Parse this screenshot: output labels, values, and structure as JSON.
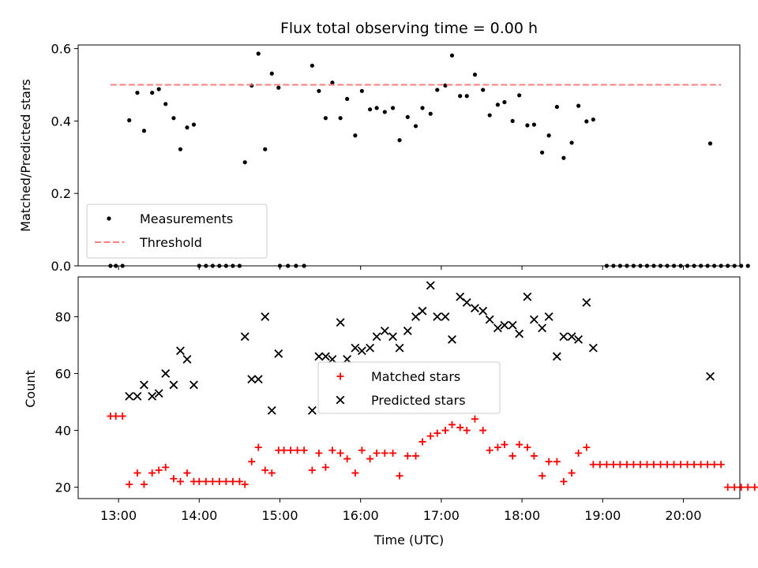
{
  "chart_data": [
    {
      "type": "scatter",
      "title": "Flux total observing time = 0.00 h",
      "xlabel": "",
      "ylabel": "Matched/Predicted stars",
      "xlim": [
        "12:30",
        "20:42"
      ],
      "ylim": [
        0,
        0.61
      ],
      "xticks": [],
      "yticks": [
        "0.0",
        "0.2",
        "0.4",
        "0.6"
      ],
      "legend_position": "lower-left",
      "series": [
        {
          "name": "Measurements",
          "kind": "scatter",
          "marker": "dot",
          "color": "#000000",
          "points": [
            [
              "12:54",
              0
            ],
            [
              "12:58",
              0
            ],
            [
              "13:03",
              0
            ],
            [
              "13:08",
              0.402
            ],
            [
              "13:14",
              0.478
            ],
            [
              "13:19",
              0.373
            ],
            [
              "13:25",
              0.478
            ],
            [
              "13:30",
              0.488
            ],
            [
              "13:35",
              0.447
            ],
            [
              "13:41",
              0.408
            ],
            [
              "13:46",
              0.322
            ],
            [
              "13:51",
              0.382
            ],
            [
              "13:56",
              0.39
            ],
            [
              "14:00",
              0
            ],
            [
              "14:05",
              0
            ],
            [
              "14:10",
              0
            ],
            [
              "14:15",
              0
            ],
            [
              "14:20",
              0
            ],
            [
              "14:25",
              0
            ],
            [
              "14:30",
              0
            ],
            [
              "14:34",
              0.286
            ],
            [
              "14:39",
              0.498
            ],
            [
              "14:44",
              0.586
            ],
            [
              "14:49",
              0.322
            ],
            [
              "14:54",
              0.531
            ],
            [
              "14:59",
              0.492
            ],
            [
              "15:00",
              0
            ],
            [
              "15:06",
              0
            ],
            [
              "15:12",
              0
            ],
            [
              "15:18",
              0
            ],
            [
              "15:24",
              0.553
            ],
            [
              "15:29",
              0.483
            ],
            [
              "15:34",
              0.408
            ],
            [
              "15:39",
              0.506
            ],
            [
              "15:45",
              0.408
            ],
            [
              "15:50",
              0.461
            ],
            [
              "15:56",
              0.36
            ],
            [
              "16:01",
              0.483
            ],
            [
              "16:07",
              0.432
            ],
            [
              "16:12",
              0.436
            ],
            [
              "16:18",
              0.425
            ],
            [
              "16:24",
              0.436
            ],
            [
              "16:29",
              0.347
            ],
            [
              "16:35",
              0.411
            ],
            [
              "16:41",
              0.386
            ],
            [
              "16:46",
              0.436
            ],
            [
              "16:52",
              0.42
            ],
            [
              "16:57",
              0.486
            ],
            [
              "17:03",
              0.498
            ],
            [
              "17:08",
              0.581
            ],
            [
              "17:14",
              0.469
            ],
            [
              "17:19",
              0.469
            ],
            [
              "17:25",
              0.528
            ],
            [
              "17:31",
              0.486
            ],
            [
              "17:36",
              0.416
            ],
            [
              "17:42",
              0.445
            ],
            [
              "17:47",
              0.452
            ],
            [
              "17:53",
              0.4
            ],
            [
              "17:58",
              0.471
            ],
            [
              "18:04",
              0.388
            ],
            [
              "18:09",
              0.39
            ],
            [
              "18:15",
              0.313
            ],
            [
              "18:20",
              0.36
            ],
            [
              "18:26",
              0.439
            ],
            [
              "18:31",
              0.298
            ],
            [
              "18:37",
              0.34
            ],
            [
              "18:42",
              0.442
            ],
            [
              "18:48",
              0.399
            ],
            [
              "18:53",
              0.404
            ],
            [
              "19:03",
              0
            ],
            [
              "19:08",
              0
            ],
            [
              "19:13",
              0
            ],
            [
              "19:18",
              0
            ],
            [
              "19:23",
              0
            ],
            [
              "19:28",
              0
            ],
            [
              "19:33",
              0
            ],
            [
              "19:38",
              0
            ],
            [
              "19:43",
              0
            ],
            [
              "19:48",
              0
            ],
            [
              "19:53",
              0
            ],
            [
              "19:58",
              0
            ],
            [
              "20:03",
              0
            ],
            [
              "20:08",
              0
            ],
            [
              "20:13",
              0
            ],
            [
              "20:18",
              0
            ],
            [
              "20:23",
              0
            ],
            [
              "20:28",
              0
            ],
            [
              "20:20",
              0.338
            ],
            [
              "20:33",
              0
            ],
            [
              "20:38",
              0
            ],
            [
              "20:43",
              0
            ],
            [
              "20:48",
              0
            ]
          ]
        },
        {
          "name": "Threshold",
          "kind": "hline",
          "style": "dashed",
          "color": "#ff7f7f",
          "y": 0.5,
          "x_from": "12:54",
          "x_to": "20:28"
        }
      ]
    },
    {
      "type": "scatter",
      "title": "",
      "xlabel": "Time (UTC)",
      "ylabel": "Count",
      "xlim": [
        "12:30",
        "20:42"
      ],
      "ylim": [
        16,
        94
      ],
      "xticks": [
        "13:00",
        "14:00",
        "15:00",
        "16:00",
        "17:00",
        "18:00",
        "19:00",
        "20:00"
      ],
      "yticks": [
        "20",
        "40",
        "60",
        "80"
      ],
      "legend_position": "center",
      "series": [
        {
          "name": "Matched stars",
          "kind": "scatter",
          "marker": "plus",
          "color": "#ff0000",
          "points": [
            [
              "12:54",
              45
            ],
            [
              "12:58",
              45
            ],
            [
              "13:03",
              45
            ],
            [
              "13:08",
              21
            ],
            [
              "13:14",
              25
            ],
            [
              "13:19",
              21
            ],
            [
              "13:25",
              25
            ],
            [
              "13:30",
              26
            ],
            [
              "13:35",
              27
            ],
            [
              "13:41",
              23
            ],
            [
              "13:46",
              22
            ],
            [
              "13:51",
              25
            ],
            [
              "13:56",
              22
            ],
            [
              "14:00",
              22
            ],
            [
              "14:05",
              22
            ],
            [
              "14:10",
              22
            ],
            [
              "14:15",
              22
            ],
            [
              "14:20",
              22
            ],
            [
              "14:25",
              22
            ],
            [
              "14:30",
              22
            ],
            [
              "14:34",
              21
            ],
            [
              "14:39",
              29
            ],
            [
              "14:44",
              34
            ],
            [
              "14:49",
              26
            ],
            [
              "14:54",
              25
            ],
            [
              "14:59",
              33
            ],
            [
              "15:03",
              33
            ],
            [
              "15:08",
              33
            ],
            [
              "15:13",
              33
            ],
            [
              "15:18",
              33
            ],
            [
              "15:24",
              26
            ],
            [
              "15:29",
              32
            ],
            [
              "15:34",
              27
            ],
            [
              "15:39",
              33
            ],
            [
              "15:45",
              32
            ],
            [
              "15:50",
              30
            ],
            [
              "15:56",
              25
            ],
            [
              "16:01",
              33
            ],
            [
              "16:07",
              30
            ],
            [
              "16:12",
              32
            ],
            [
              "16:18",
              32
            ],
            [
              "16:24",
              32
            ],
            [
              "16:29",
              24
            ],
            [
              "16:35",
              31
            ],
            [
              "16:41",
              31
            ],
            [
              "16:46",
              36
            ],
            [
              "16:52",
              38
            ],
            [
              "16:57",
              39
            ],
            [
              "17:03",
              40
            ],
            [
              "17:08",
              42
            ],
            [
              "17:14",
              41
            ],
            [
              "17:19",
              40
            ],
            [
              "17:25",
              44
            ],
            [
              "17:31",
              40
            ],
            [
              "17:36",
              33
            ],
            [
              "17:42",
              34
            ],
            [
              "17:47",
              35
            ],
            [
              "17:53",
              31
            ],
            [
              "17:58",
              35
            ],
            [
              "18:04",
              34
            ],
            [
              "18:09",
              31
            ],
            [
              "18:15",
              24
            ],
            [
              "18:20",
              29
            ],
            [
              "18:26",
              29
            ],
            [
              "18:31",
              22
            ],
            [
              "18:37",
              25
            ],
            [
              "18:42",
              32
            ],
            [
              "18:48",
              34
            ],
            [
              "18:53",
              28
            ],
            [
              "18:58",
              28
            ],
            [
              "19:03",
              28
            ],
            [
              "19:08",
              28
            ],
            [
              "19:13",
              28
            ],
            [
              "19:18",
              28
            ],
            [
              "19:23",
              28
            ],
            [
              "19:28",
              28
            ],
            [
              "19:33",
              28
            ],
            [
              "19:38",
              28
            ],
            [
              "19:43",
              28
            ],
            [
              "19:48",
              28
            ],
            [
              "19:53",
              28
            ],
            [
              "19:58",
              28
            ],
            [
              "20:03",
              28
            ],
            [
              "20:08",
              28
            ],
            [
              "20:13",
              28
            ],
            [
              "20:18",
              28
            ],
            [
              "20:23",
              28
            ],
            [
              "20:28",
              28
            ],
            [
              "20:33",
              20
            ],
            [
              "20:38",
              20
            ],
            [
              "20:43",
              20
            ],
            [
              "20:48",
              20
            ],
            [
              "20:53",
              20
            ]
          ]
        },
        {
          "name": "Predicted stars",
          "kind": "scatter",
          "marker": "x",
          "color": "#000000",
          "points": [
            [
              "13:08",
              52
            ],
            [
              "13:14",
              52
            ],
            [
              "13:19",
              56
            ],
            [
              "13:25",
              52
            ],
            [
              "13:30",
              53
            ],
            [
              "13:35",
              60
            ],
            [
              "13:41",
              56
            ],
            [
              "13:46",
              68
            ],
            [
              "13:51",
              65
            ],
            [
              "13:56",
              56
            ],
            [
              "14:34",
              73
            ],
            [
              "14:39",
              58
            ],
            [
              "14:44",
              58
            ],
            [
              "14:49",
              80
            ],
            [
              "14:54",
              47
            ],
            [
              "14:59",
              67
            ],
            [
              "15:24",
              47
            ],
            [
              "15:29",
              66
            ],
            [
              "15:34",
              66
            ],
            [
              "15:39",
              65
            ],
            [
              "15:45",
              78
            ],
            [
              "15:50",
              65
            ],
            [
              "15:56",
              69
            ],
            [
              "16:01",
              68
            ],
            [
              "16:07",
              69
            ],
            [
              "16:12",
              73
            ],
            [
              "16:18",
              75
            ],
            [
              "16:24",
              73
            ],
            [
              "16:29",
              69
            ],
            [
              "16:35",
              75
            ],
            [
              "16:41",
              80
            ],
            [
              "16:46",
              82
            ],
            [
              "16:52",
              91
            ],
            [
              "16:57",
              80
            ],
            [
              "17:03",
              80
            ],
            [
              "17:08",
              72
            ],
            [
              "17:14",
              87
            ],
            [
              "17:19",
              85
            ],
            [
              "17:25",
              83
            ],
            [
              "17:31",
              82
            ],
            [
              "17:36",
              79
            ],
            [
              "17:42",
              76
            ],
            [
              "17:47",
              77
            ],
            [
              "17:53",
              77
            ],
            [
              "17:58",
              74
            ],
            [
              "18:04",
              87
            ],
            [
              "18:09",
              79
            ],
            [
              "18:15",
              76
            ],
            [
              "18:20",
              80
            ],
            [
              "18:26",
              66
            ],
            [
              "18:31",
              73
            ],
            [
              "18:37",
              73
            ],
            [
              "18:42",
              72
            ],
            [
              "18:48",
              85
            ],
            [
              "18:53",
              69
            ],
            [
              "20:20",
              59
            ]
          ]
        }
      ]
    }
  ]
}
